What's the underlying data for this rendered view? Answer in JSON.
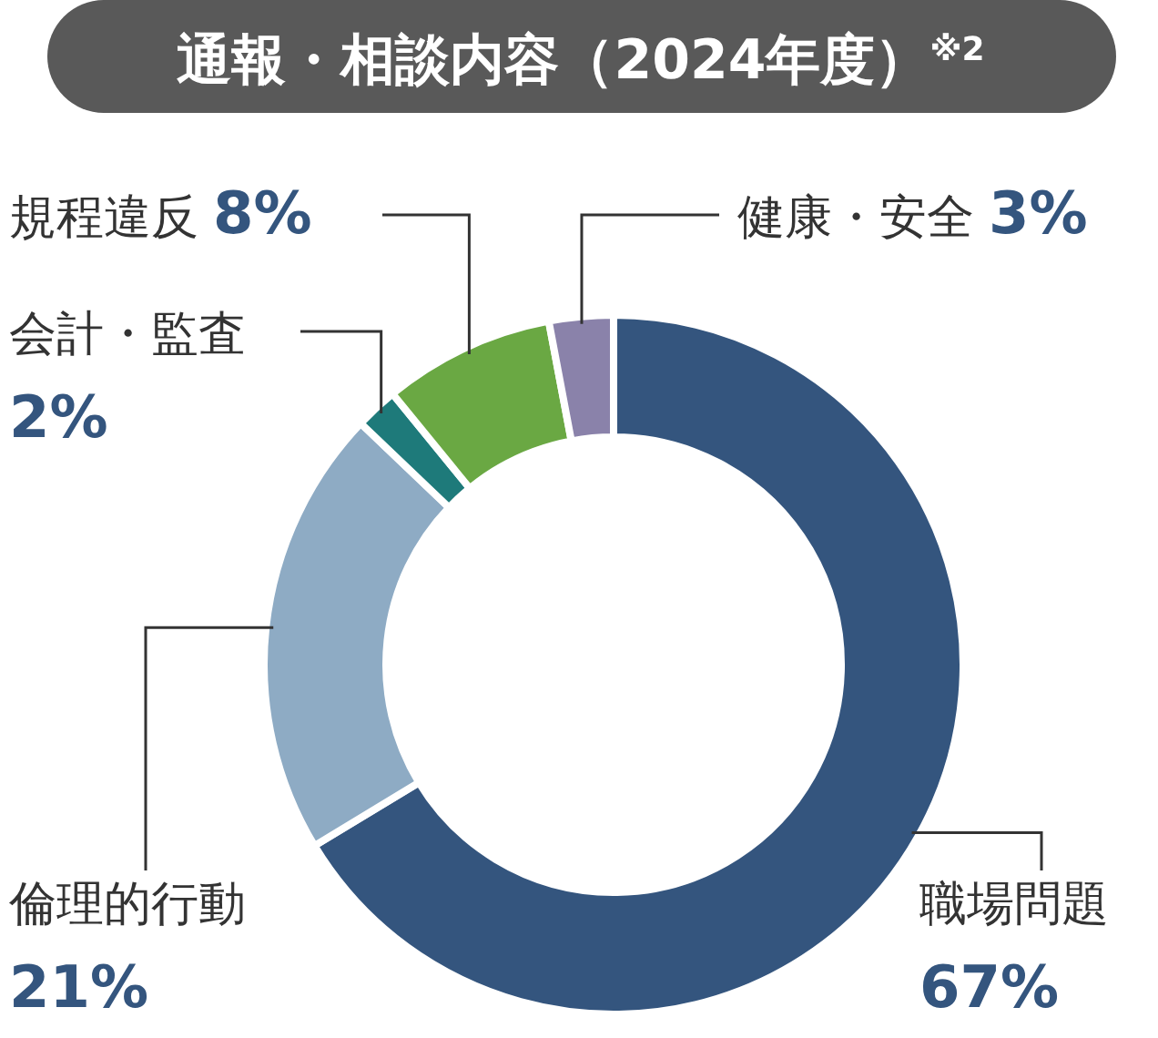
{
  "chart_data": {
    "type": "donut",
    "title": "通報・相談内容（2024年度）$^{※2}$",
    "categories": [
      "職場問題",
      "倫理的行動",
      "会計・監査",
      "規程違反",
      "健康・安全"
    ],
    "values": [
      67,
      21,
      2,
      8,
      3
    ],
    "colors": [
      "#34557e",
      "#8eabc4",
      "#1e7a7a",
      "#6aa843",
      "#8a82aa"
    ],
    "value_labels": [
      "67%",
      "21%",
      "2%",
      "8%",
      "3%"
    ]
  }
}
